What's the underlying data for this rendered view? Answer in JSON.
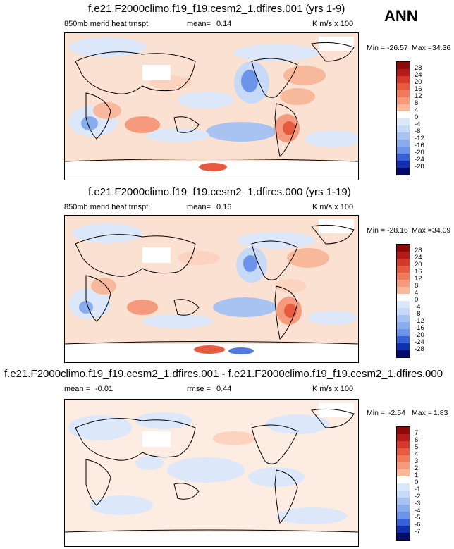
{
  "header": {
    "season": "ANN"
  },
  "colors": {
    "reds": [
      "#ffe6d6",
      "#fcd3be",
      "#f8b89c",
      "#f59a7c",
      "#ef7a5c",
      "#e65a40",
      "#d3382a",
      "#b41a1a",
      "#8c0a0a"
    ],
    "blues": [
      "#dce8fa",
      "#c6d9f6",
      "#a8c3f2",
      "#89aced",
      "#6c94e8",
      "#4f7ae0",
      "#3560d6",
      "#1f46c8",
      "#1030b0",
      "#07198c",
      "#020a6a"
    ],
    "land_outline": "#000000"
  },
  "panels": [
    {
      "title": "f.e21.F2000climo.f19_f19.cesm2_1.dfires.001 (yrs 1-9)",
      "left_label": "850mb merid heat trnspt",
      "stat_label": "mean=",
      "stat_value": "0.14",
      "units": "K m/s x 100",
      "min_label": "Min =",
      "min_value": "-26.57",
      "max_label": "Max =",
      "max_value": "34.36",
      "colorbar": [
        "28",
        "24",
        "20",
        "16",
        "12",
        "8",
        "4",
        "0",
        "-4",
        "-8",
        "-12",
        "-16",
        "-20",
        "-24",
        "-28"
      ]
    },
    {
      "title": "f.e21.F2000climo.f19_f19.cesm2_1.dfires.000 (yrs 1-19)",
      "left_label": "850mb merid heat trnspt",
      "stat_label": "mean=",
      "stat_value": "0.16",
      "units": "K m/s x 100",
      "min_label": "Min =",
      "min_value": "-28.16",
      "max_label": "Max =",
      "max_value": "34.09",
      "colorbar": [
        "28",
        "24",
        "20",
        "16",
        "12",
        "8",
        "4",
        "0",
        "-4",
        "-8",
        "-12",
        "-16",
        "-20",
        "-24",
        "-28"
      ]
    },
    {
      "title": "f.e21.F2000climo.f19_f19.cesm2_1.dfires.001 - f.e21.F2000climo.f19_f19.cesm2_1.dfires.000",
      "left_label": "mean =",
      "left_value": "-0.01",
      "stat_label": "rmse =",
      "stat_value": "0.44",
      "units": "K m/s x 100",
      "min_label": "Min =",
      "min_value": "-2.54",
      "max_label": "Max =",
      "max_value": "1.83",
      "colorbar": [
        "7",
        "6",
        "5",
        "4",
        "3",
        "2",
        "1",
        "0",
        "-1",
        "-2",
        "-3",
        "-4",
        "-5",
        "-6",
        "-7"
      ]
    }
  ]
}
